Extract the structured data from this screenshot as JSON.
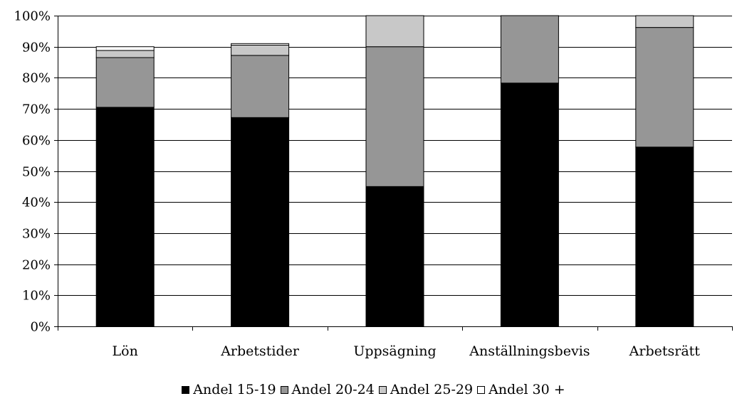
{
  "chart_data": {
    "type": "bar",
    "stacked": true,
    "categories": [
      "Lön",
      "Arbetstider",
      "Uppsägning",
      "Anställningsbevis",
      "Arbetsrätt"
    ],
    "series": [
      {
        "name": "Andel 15-19",
        "color": "#000000",
        "values": [
          70.5,
          67.2,
          45.0,
          78.3,
          57.7
        ]
      },
      {
        "name": "Andel 20-24",
        "color": "#969696",
        "values": [
          16.0,
          20.0,
          45.0,
          21.7,
          38.5
        ]
      },
      {
        "name": "Andel 25-29",
        "color": "#c8c8c8",
        "values": [
          2.3,
          3.3,
          10.0,
          0.0,
          3.8
        ]
      },
      {
        "name": "Andel 30 +",
        "color": "#ffffff",
        "values": [
          1.2,
          0.5,
          0.0,
          0.0,
          0.0
        ]
      }
    ],
    "yticks": [
      "0%",
      "10%",
      "20%",
      "30%",
      "40%",
      "50%",
      "60%",
      "70%",
      "80%",
      "90%",
      "100%"
    ],
    "ylim": [
      0,
      100
    ],
    "grid": true,
    "legend_position": "bottom",
    "title": "",
    "xlabel": "",
    "ylabel": ""
  }
}
